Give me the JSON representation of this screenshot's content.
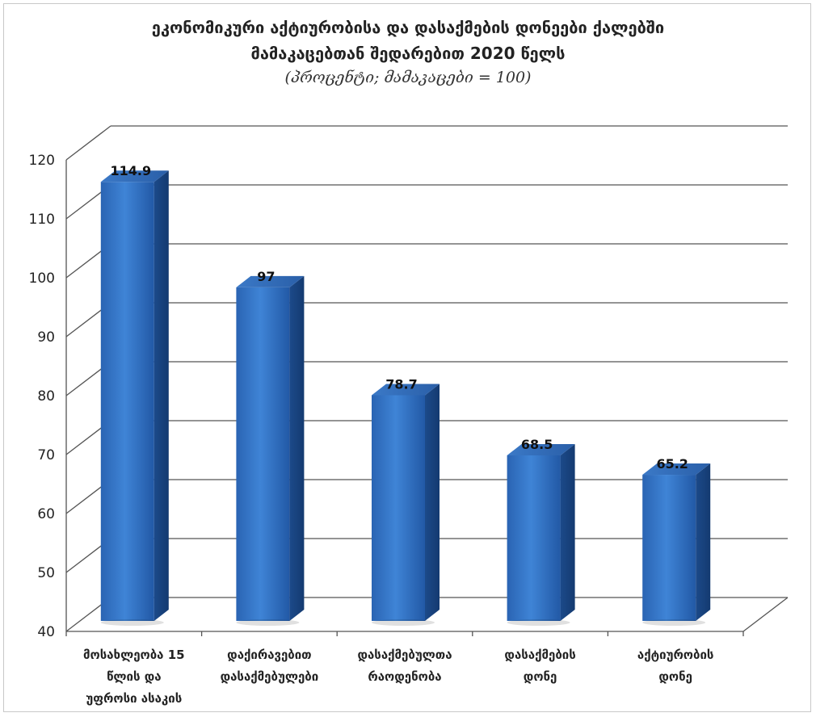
{
  "chart_data": {
    "type": "bar",
    "title_lines": [
      "ეკონომიკური აქტიურობისა და დასაქმების დონეები ქალებში",
      "მამაკაცებთან შედარებით 2020 წელს"
    ],
    "subtitle": "(პროცენტი; მამაკაცები = 100)",
    "categories": [
      [
        "მოსახლეობა 15",
        "წლის და",
        "უფროსი ასაკის"
      ],
      [
        "დაქირავებით",
        "დასაქმებულები"
      ],
      [
        "დასაქმებულთა",
        "რაოდენობა"
      ],
      [
        "დასაქმების",
        "დონე"
      ],
      [
        "აქტიურობის",
        "დონე"
      ]
    ],
    "values": [
      114.9,
      97,
      78.7,
      68.5,
      65.2
    ],
    "value_labels": [
      "114.9",
      "97",
      "78.7",
      "68.5",
      "65.2"
    ],
    "ylim": [
      40,
      120
    ],
    "yticks": [
      40,
      50,
      60,
      70,
      80,
      90,
      100,
      110,
      120
    ],
    "grid": true,
    "legend": "none",
    "bar_color": "#2f6fbf"
  }
}
